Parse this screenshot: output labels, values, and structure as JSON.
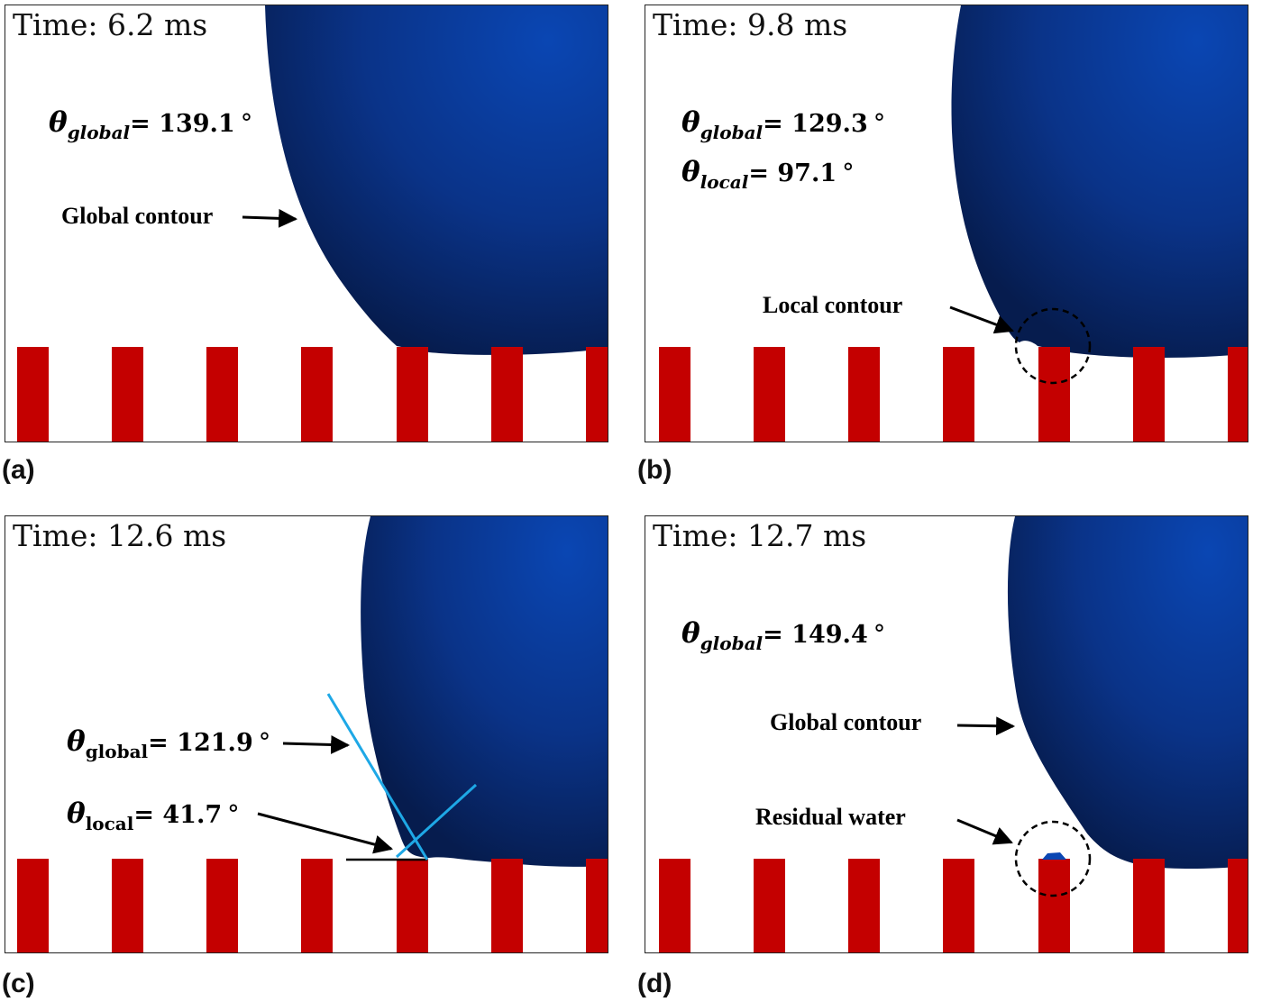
{
  "panels": {
    "a": {
      "tag": "(a)",
      "time": "Time: 6.2 ms",
      "theta_global_symbol": "θ",
      "theta_global_sub": "global",
      "theta_global_value": "= 139.1",
      "degree": "°",
      "label_global_contour": "Global contour"
    },
    "b": {
      "tag": "(b)",
      "time": "Time: 9.8 ms",
      "theta_global_symbol": "θ",
      "theta_global_sub": "global",
      "theta_global_value": "= 129.3",
      "theta_local_symbol": "θ",
      "theta_local_sub": "local",
      "theta_local_value": "= 97.1",
      "degree": "°",
      "label_local_contour": "Local contour"
    },
    "c": {
      "tag": "(c)",
      "time": "Time: 12.6 ms",
      "theta_global_symbol": "θ",
      "theta_global_sub": "global",
      "theta_global_value": "= 121.9",
      "theta_local_symbol": "θ",
      "theta_local_sub": "local",
      "theta_local_value": "= 41.7",
      "degree": "°"
    },
    "d": {
      "tag": "(d)",
      "time": "Time: 12.7 ms",
      "theta_global_symbol": "θ",
      "theta_global_sub": "global",
      "theta_global_value": "= 149.4",
      "degree": "°",
      "label_global_contour": "Global contour",
      "label_residual_water": "Residual water"
    }
  },
  "colors": {
    "droplet_dark": "#061c4e",
    "droplet_light": "#0a46b3",
    "pillar": "#c40000",
    "tangent_line": "#1ea8e6",
    "annotation": "#000000"
  }
}
